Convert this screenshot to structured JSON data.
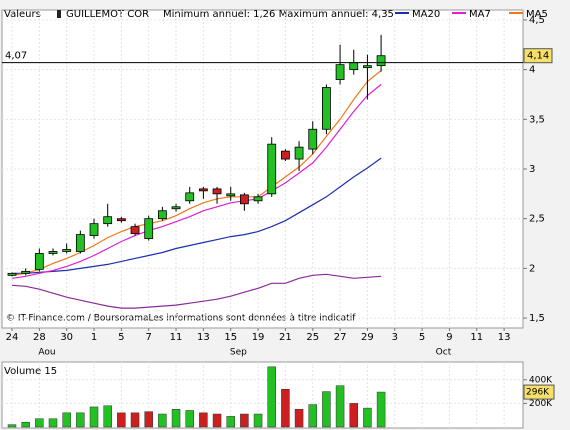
{
  "chart_data": [
    {
      "type": "candlestick",
      "label": "Valeurs",
      "title": "GUILLEMOT COR",
      "subtitle": "Minimum annuel: 1,26 Maximum annuel: 4,35",
      "source": "© IT-Finance.com / BoursoramaLes informations sont données à titre indicatif",
      "categories": [
        "24",
        null,
        "28",
        null,
        "30",
        null,
        "1",
        null,
        "5",
        null,
        "7",
        null,
        "11",
        null,
        "13",
        null,
        "15",
        null,
        "19",
        null,
        "21",
        null,
        "25",
        null,
        "27",
        null,
        "29",
        null,
        "3",
        null,
        "5",
        null,
        "9",
        null,
        "11",
        null,
        "13",
        null
      ],
      "months": [
        null,
        null,
        null,
        "Aou",
        null,
        null,
        null,
        null,
        null,
        null,
        null,
        null,
        null,
        null,
        null,
        null,
        null,
        "Sep",
        null,
        null,
        null,
        null,
        null,
        null,
        null,
        null,
        null,
        null,
        null,
        null,
        null,
        null,
        "Oct",
        null,
        null,
        null,
        null,
        null
      ],
      "ohlc": {
        "open": [
          1.93,
          1.95,
          1.99,
          2.15,
          2.17,
          2.17,
          2.33,
          2.45,
          2.5,
          2.42,
          2.3,
          2.5,
          2.6,
          2.68,
          2.8,
          2.8,
          2.73,
          2.74,
          2.68,
          2.75,
          3.18,
          3.1,
          3.2,
          3.4,
          3.9,
          4.0,
          4.02,
          4.04,
          null,
          null,
          null,
          null,
          null,
          null,
          null,
          null,
          null,
          null
        ],
        "high": [
          1.96,
          2.0,
          2.2,
          2.2,
          2.25,
          2.38,
          2.5,
          2.65,
          2.52,
          2.45,
          2.53,
          2.62,
          2.65,
          2.82,
          2.82,
          2.82,
          2.82,
          2.76,
          2.75,
          3.32,
          3.2,
          3.28,
          3.48,
          3.85,
          4.25,
          4.2,
          4.15,
          4.35,
          null,
          null,
          null,
          null,
          null,
          null,
          null,
          null,
          null,
          null
        ],
        "low": [
          1.92,
          1.93,
          1.97,
          2.13,
          2.15,
          2.15,
          2.3,
          2.42,
          2.46,
          2.33,
          2.28,
          2.48,
          2.57,
          2.65,
          2.7,
          2.65,
          2.68,
          2.58,
          2.65,
          2.72,
          3.08,
          2.98,
          3.15,
          3.35,
          3.85,
          3.95,
          3.7,
          3.98,
          null,
          null,
          null,
          null,
          null,
          null,
          null,
          null,
          null,
          null
        ],
        "close": [
          1.95,
          1.97,
          2.15,
          2.17,
          2.19,
          2.34,
          2.45,
          2.52,
          2.48,
          2.35,
          2.5,
          2.58,
          2.62,
          2.76,
          2.78,
          2.75,
          2.75,
          2.65,
          2.72,
          3.25,
          3.1,
          3.22,
          3.4,
          3.82,
          4.05,
          4.07,
          4.04,
          4.14,
          null,
          null,
          null,
          null,
          null,
          null,
          null,
          null,
          null,
          null
        ]
      },
      "up_color": "#22c022",
      "down_color": "#cc1f1f",
      "series": [
        {
          "name": "MA20",
          "color": "#1c2fb0",
          "values": [
            1.95,
            1.95,
            1.96,
            1.97,
            1.98,
            2.0,
            2.02,
            2.04,
            2.07,
            2.1,
            2.13,
            2.16,
            2.2,
            2.23,
            2.26,
            2.29,
            2.32,
            2.34,
            2.37,
            2.42,
            2.48,
            2.56,
            2.64,
            2.72,
            2.82,
            2.92,
            3.01,
            3.11,
            null,
            null,
            null,
            null,
            null,
            null,
            null,
            null,
            null,
            null
          ]
        },
        {
          "name": "MA7",
          "color": "#e020d0",
          "values": [
            1.9,
            1.92,
            1.95,
            1.98,
            2.02,
            2.07,
            2.13,
            2.2,
            2.27,
            2.33,
            2.38,
            2.42,
            2.47,
            2.52,
            2.58,
            2.62,
            2.66,
            2.68,
            2.7,
            2.78,
            2.86,
            2.96,
            3.06,
            3.22,
            3.4,
            3.58,
            3.74,
            3.85,
            null,
            null,
            null,
            null,
            null,
            null,
            null,
            null,
            null,
            null
          ]
        },
        {
          "name": "MA5",
          "color": "#f07818",
          "values": [
            1.93,
            1.95,
            1.99,
            2.05,
            2.1,
            2.16,
            2.23,
            2.31,
            2.37,
            2.42,
            2.45,
            2.48,
            2.53,
            2.6,
            2.66,
            2.7,
            2.72,
            2.72,
            2.72,
            2.82,
            2.92,
            3.02,
            3.15,
            3.33,
            3.5,
            3.7,
            3.88,
            3.99,
            null,
            null,
            null,
            null,
            null,
            null,
            null,
            null,
            null,
            null
          ]
        },
        {
          "color": "#8a2a9a",
          "values": [
            1.83,
            1.82,
            1.79,
            1.75,
            1.71,
            1.68,
            1.65,
            1.62,
            1.6,
            1.6,
            1.61,
            1.62,
            1.63,
            1.65,
            1.67,
            1.69,
            1.72,
            1.76,
            1.8,
            1.85,
            1.85,
            1.9,
            1.93,
            1.94,
            1.92,
            1.9,
            1.91,
            1.92,
            null,
            null,
            null,
            null,
            null,
            null,
            null,
            null,
            null,
            null
          ]
        }
      ],
      "ylim": [
        1.4,
        4.6
      ],
      "yticks": [
        {
          "value": 1.5,
          "label": "1,5"
        },
        {
          "value": 2,
          "label": "2"
        },
        {
          "value": 2.5,
          "label": "2,5"
        },
        {
          "value": 3,
          "label": "3"
        },
        {
          "value": 3.5,
          "label": "3,5"
        },
        {
          "value": 4,
          "label": "4"
        },
        {
          "value": 4.5,
          "label": "4,5"
        }
      ],
      "reference_line": {
        "value": 4.07,
        "label": "4,07"
      },
      "last": {
        "value": 4.14,
        "label": "4,14"
      },
      "grid": true
    },
    {
      "type": "bar",
      "title": "Volume 15",
      "values": [
        20000,
        40000,
        70000,
        70000,
        120000,
        120000,
        170000,
        180000,
        120000,
        120000,
        130000,
        110000,
        150000,
        140000,
        120000,
        110000,
        90000,
        110000,
        110000,
        510000,
        320000,
        150000,
        190000,
        300000,
        350000,
        200000,
        160000,
        296000,
        null,
        null,
        null,
        null,
        null,
        null,
        null,
        null,
        null,
        null
      ],
      "colors": [
        "#22c022",
        "#22c022",
        "#22c022",
        "#22c022",
        "#22c022",
        "#22c022",
        "#22c022",
        "#22c022",
        "#cc1f1f",
        "#cc1f1f",
        "#cc1f1f",
        "#22c022",
        "#22c022",
        "#22c022",
        "#cc1f1f",
        "#cc1f1f",
        "#22c022",
        "#cc1f1f",
        "#22c022",
        "#22c022",
        "#cc1f1f",
        "#cc1f1f",
        "#22c022",
        "#22c022",
        "#22c022",
        "#cc1f1f",
        "#22c022",
        "#22c022",
        null,
        null,
        null,
        null,
        null,
        null,
        null,
        null,
        null,
        null
      ],
      "ylim": [
        0,
        500000
      ],
      "yticks": [
        {
          "value": 200000,
          "label": "200K"
        },
        {
          "value": 400000,
          "label": "400K"
        }
      ],
      "last": {
        "value": 296000,
        "label": "296K"
      },
      "grid": true
    }
  ]
}
